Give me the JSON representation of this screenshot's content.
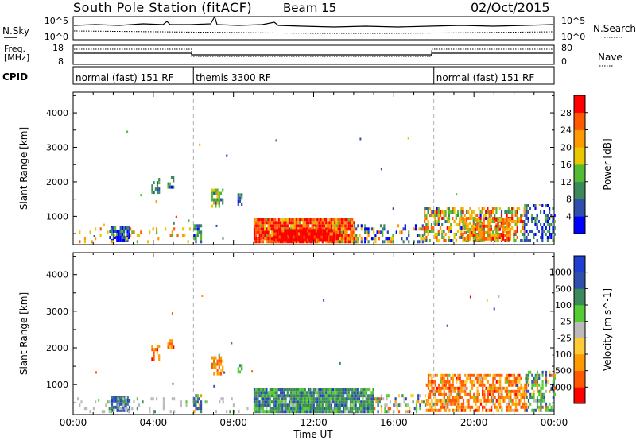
{
  "chart_data": {
    "type": "heatmap",
    "title": {
      "station": "South Pole Station (fitACF)",
      "beam": "Beam 15",
      "date": "02/Oct/2015"
    },
    "header_panels": {
      "nsky": {
        "label": "N.Sky",
        "ticks": [
          "10^5",
          "10^0"
        ]
      },
      "nsearch": {
        "label": "N.Search",
        "ticks": [
          "10^5",
          "10^0"
        ]
      },
      "freq": {
        "label_line1": "Freq.",
        "label_line2": "[MHz]",
        "ticks": [
          "18",
          "8"
        ]
      },
      "nave": {
        "label": "Nave",
        "ticks": [
          "80",
          "0"
        ]
      },
      "cpid": {
        "label": "CPID",
        "segments": [
          {
            "name": "normal (fast) 151 RF",
            "start_h": 0,
            "end_h": 6
          },
          {
            "name": "themis 3300 RF",
            "start_h": 6,
            "end_h": 18
          },
          {
            "name": "normal (fast) 151 RF",
            "start_h": 18,
            "end_h": 24
          }
        ]
      }
    },
    "xaxis": {
      "label": "Time UT",
      "range_h": [
        0,
        24
      ],
      "ticks": [
        "00:00",
        "04:00",
        "08:00",
        "12:00",
        "16:00",
        "20:00",
        "00:00"
      ]
    },
    "yaxis": {
      "label": "Slant Range [km]",
      "range_km": [
        180,
        4600
      ],
      "ticks": [
        "1000",
        "2000",
        "3000",
        "4000"
      ]
    },
    "panels": [
      {
        "name": "power",
        "colorbar": {
          "label": "Power [dB]",
          "ticks": [
            "28",
            "24",
            "20",
            "16",
            "12",
            "8",
            "4"
          ],
          "colors": [
            "#0000ff",
            "#2f4fae",
            "#3c8a5a",
            "#55bb33",
            "#e8c800",
            "#ff9a00",
            "#ff5a00",
            "#ff0000"
          ]
        },
        "regions": [
          {
            "t0": 9.0,
            "t1": 14.0,
            "r0": 220,
            "r1": 900,
            "dens": 0.95,
            "w": [
              0,
              0,
              0,
              0.05,
              0.1,
              0.2,
              0.3,
              0.5
            ]
          },
          {
            "t0": 10.0,
            "t1": 13.0,
            "r0": 260,
            "r1": 620,
            "dens": 1.0,
            "w": [
              0,
              0,
              0,
              0,
              0,
              0.05,
              0.15,
              0.8
            ]
          },
          {
            "t0": 14.0,
            "t1": 17.5,
            "r0": 220,
            "r1": 700,
            "dens": 0.35,
            "w": [
              0.2,
              0.3,
              0.15,
              0.1,
              0.1,
              0.1,
              0.05,
              0
            ]
          },
          {
            "t0": 17.5,
            "t1": 22.5,
            "r0": 250,
            "r1": 1250,
            "dens": 0.55,
            "w": [
              0.02,
              0.05,
              0.15,
              0.22,
              0.18,
              0.18,
              0.15,
              0.05
            ]
          },
          {
            "t0": 19.5,
            "t1": 21.8,
            "r0": 300,
            "r1": 900,
            "dens": 0.75,
            "w": [
              0,
              0,
              0.05,
              0.1,
              0.15,
              0.35,
              0.25,
              0.1
            ]
          },
          {
            "t0": 22.5,
            "t1": 24.0,
            "r0": 250,
            "r1": 1350,
            "dens": 0.4,
            "w": [
              0.3,
              0.35,
              0.25,
              0.1,
              0,
              0,
              0,
              0
            ]
          },
          {
            "t0": 1.8,
            "t1": 2.8,
            "r0": 250,
            "r1": 650,
            "dens": 0.75,
            "w": [
              0.4,
              0.35,
              0.15,
              0.1,
              0,
              0,
              0,
              0
            ]
          },
          {
            "t0": 0.2,
            "t1": 5.8,
            "r0": 220,
            "r1": 650,
            "dens": 0.12,
            "w": [
              0,
              0,
              0.05,
              0.15,
              0.35,
              0.25,
              0.2,
              0
            ]
          },
          {
            "t0": 3.9,
            "t1": 4.3,
            "r0": 1650,
            "r1": 2050,
            "dens": 0.6,
            "w": [
              0.15,
              0.3,
              0.4,
              0.15,
              0,
              0,
              0,
              0
            ]
          },
          {
            "t0": 4.7,
            "t1": 5.0,
            "r0": 1800,
            "r1": 2150,
            "dens": 0.6,
            "w": [
              0.15,
              0.3,
              0.4,
              0.15,
              0,
              0,
              0,
              0
            ]
          },
          {
            "t0": 6.9,
            "t1": 7.5,
            "r0": 1250,
            "r1": 1750,
            "dens": 0.7,
            "w": [
              0,
              0.1,
              0.25,
              0.35,
              0.25,
              0.05,
              0,
              0
            ]
          },
          {
            "t0": 8.2,
            "t1": 8.45,
            "r0": 1300,
            "r1": 1600,
            "dens": 0.7,
            "w": [
              0.1,
              0.3,
              0.4,
              0.2,
              0,
              0,
              0,
              0
            ]
          },
          {
            "t0": 6.0,
            "t1": 6.4,
            "r0": 220,
            "r1": 700,
            "dens": 0.6,
            "w": [
              0.2,
              0.3,
              0.3,
              0.2,
              0,
              0,
              0,
              0
            ]
          }
        ]
      },
      {
        "name": "velocity",
        "colorbar": {
          "label": "Velocity [m s^-1]",
          "ticks": [
            "1000",
            "500",
            "100",
            "25",
            "-25",
            "-100",
            "-500",
            "-1000"
          ],
          "colors": [
            "#ff0000",
            "#ff5a00",
            "#ff9a00",
            "#ffcc33",
            "#bbbbbb",
            "#55cc33",
            "#3c8a5a",
            "#2f4fae",
            "#1f3fd0"
          ]
        },
        "regions": [
          {
            "t0": 9.0,
            "t1": 15.0,
            "r0": 220,
            "r1": 880,
            "dens": 0.95,
            "w": [
              0,
              0,
              0,
              0,
              0.03,
              0.2,
              0.55,
              0.15,
              0.07
            ]
          },
          {
            "t0": 15.0,
            "t1": 17.6,
            "r0": 220,
            "r1": 700,
            "dens": 0.35,
            "w": [
              0,
              0.05,
              0.1,
              0.1,
              0.25,
              0.2,
              0.15,
              0.1,
              0.05
            ]
          },
          {
            "t0": 17.6,
            "t1": 22.6,
            "r0": 250,
            "r1": 1250,
            "dens": 0.65,
            "w": [
              0.05,
              0.45,
              0.35,
              0.1,
              0.02,
              0.02,
              0.01,
              0,
              0
            ]
          },
          {
            "t0": 22.6,
            "t1": 24.0,
            "r0": 250,
            "r1": 1300,
            "dens": 0.45,
            "w": [
              0,
              0.05,
              0.05,
              0.05,
              0.05,
              0.3,
              0.3,
              0.2,
              0
            ]
          },
          {
            "t0": 1.9,
            "t1": 2.8,
            "r0": 250,
            "r1": 650,
            "dens": 0.75,
            "w": [
              0,
              0,
              0,
              0,
              0,
              0.05,
              0.25,
              0.4,
              0.3
            ]
          },
          {
            "t0": 0.2,
            "t1": 8.8,
            "r0": 220,
            "r1": 600,
            "dens": 0.15,
            "w": [
              0,
              0,
              0,
              0,
              0.85,
              0.1,
              0.05,
              0,
              0
            ]
          },
          {
            "t0": 3.9,
            "t1": 4.3,
            "r0": 1650,
            "r1": 2050,
            "dens": 0.6,
            "w": [
              0.1,
              0.45,
              0.4,
              0.05,
              0,
              0,
              0,
              0,
              0
            ]
          },
          {
            "t0": 4.7,
            "t1": 5.0,
            "r0": 1800,
            "r1": 2150,
            "dens": 0.6,
            "w": [
              0.1,
              0.45,
              0.4,
              0.05,
              0,
              0,
              0,
              0,
              0
            ]
          },
          {
            "t0": 6.9,
            "t1": 7.5,
            "r0": 1250,
            "r1": 1750,
            "dens": 0.7,
            "w": [
              0,
              0.35,
              0.45,
              0.15,
              0,
              0.05,
              0,
              0,
              0
            ]
          },
          {
            "t0": 8.2,
            "t1": 8.45,
            "r0": 1300,
            "r1": 1600,
            "dens": 0.7,
            "w": [
              0,
              0,
              0,
              0,
              0,
              0.2,
              0.6,
              0.2,
              0
            ]
          },
          {
            "t0": 6.0,
            "t1": 6.4,
            "r0": 220,
            "r1": 700,
            "dens": 0.6,
            "w": [
              0,
              0,
              0.2,
              0,
              0,
              0.2,
              0.3,
              0.3,
              0
            ]
          }
        ]
      }
    ]
  }
}
